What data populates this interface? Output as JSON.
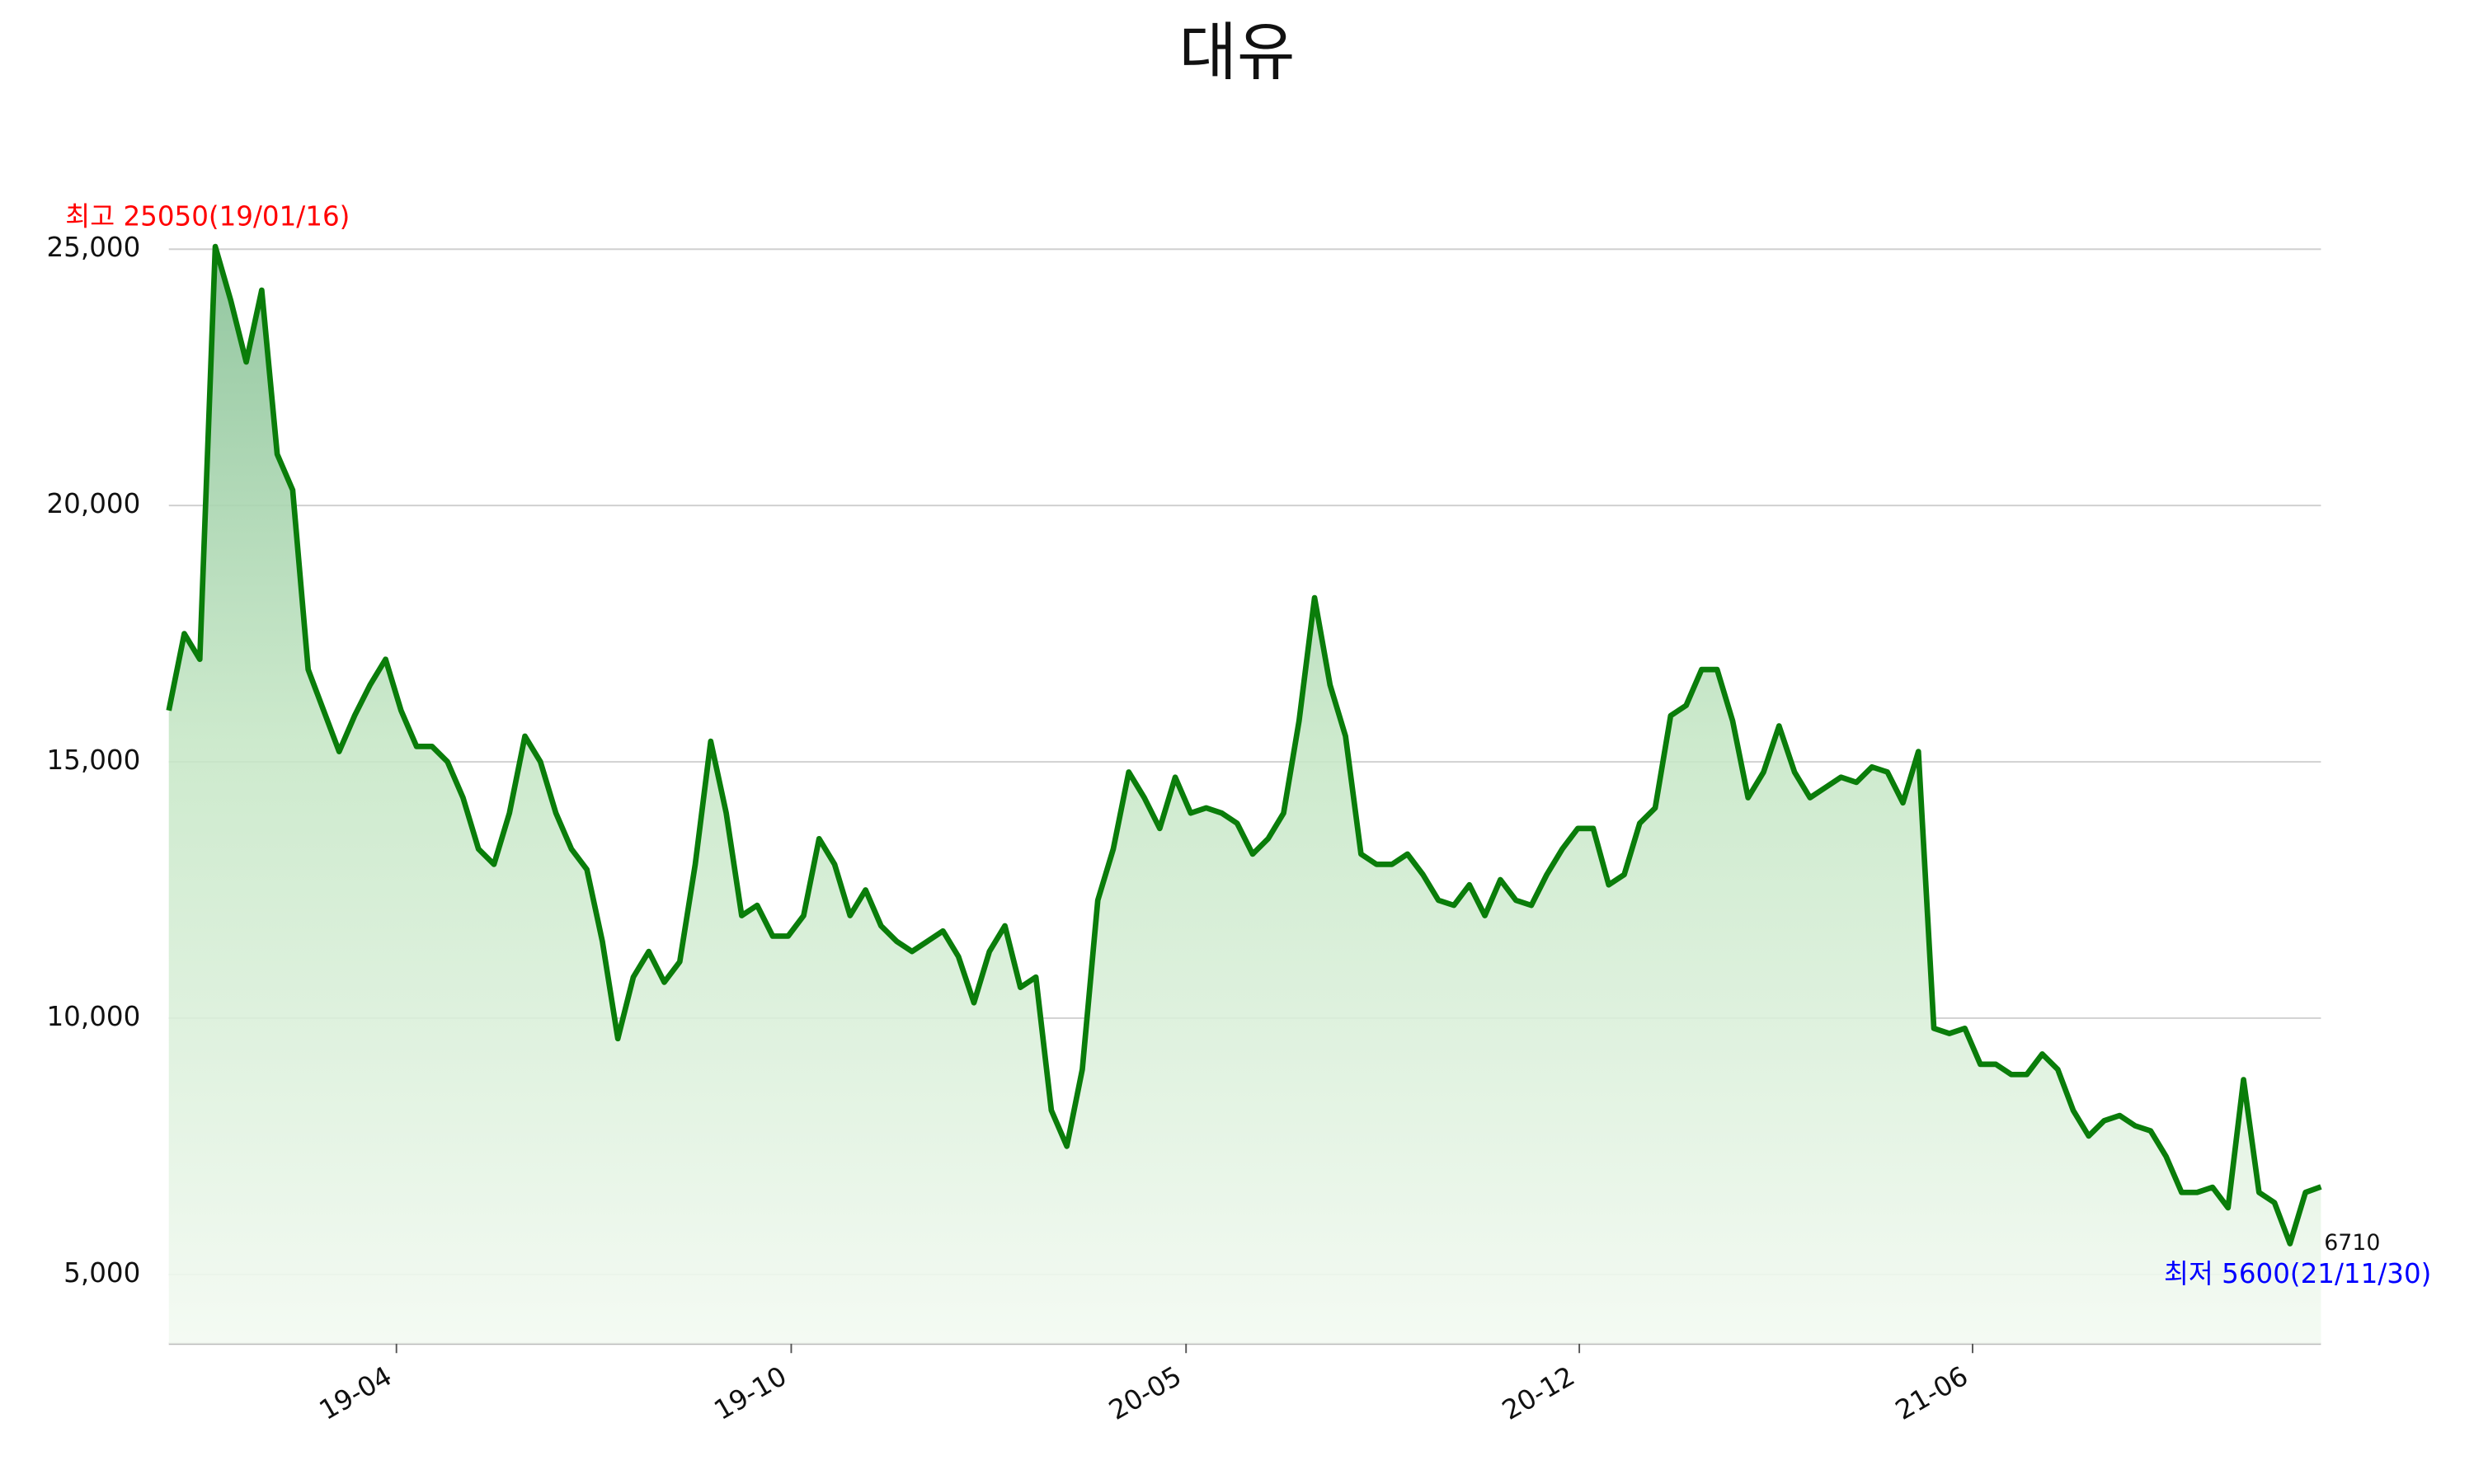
{
  "chart_data": {
    "type": "line",
    "title": "대유",
    "values": [
      16000,
      17500,
      17000,
      25050,
      24000,
      22800,
      24200,
      21000,
      20300,
      16800,
      16000,
      15200,
      15900,
      16500,
      17000,
      16000,
      15300,
      15300,
      15000,
      14300,
      13300,
      13000,
      14000,
      15500,
      15000,
      14000,
      13300,
      12900,
      11500,
      9600,
      10800,
      11300,
      10700,
      11100,
      13000,
      15400,
      14000,
      12000,
      12200,
      11600,
      11600,
      12000,
      13500,
      13000,
      12000,
      12500,
      11800,
      11500,
      11300,
      11500,
      11700,
      11200,
      10300,
      11300,
      11800,
      10600,
      10800,
      8200,
      7500,
      9000,
      12300,
      13300,
      14800,
      14300,
      13700,
      14700,
      14000,
      14100,
      14000,
      13800,
      13200,
      13500,
      14000,
      15800,
      18200,
      16500,
      15500,
      13200,
      13000,
      13000,
      13200,
      12800,
      12300,
      12200,
      12600,
      12000,
      12700,
      12300,
      12200,
      12800,
      13300,
      13700,
      13700,
      12600,
      12800,
      13800,
      14100,
      15900,
      16100,
      16800,
      16800,
      15800,
      14300,
      14800,
      15700,
      14800,
      14300,
      14500,
      14700,
      14600,
      14900,
      14800,
      14200,
      15200,
      9800,
      9700,
      9800,
      9100,
      9100,
      8900,
      8900,
      9300,
      9000,
      8200,
      7700,
      8000,
      8100,
      7900,
      7800,
      7300,
      6600,
      6600,
      6700,
      6300,
      8800,
      6600,
      6400,
      5600,
      6600,
      6710
    ],
    "color": "#0a7d0a",
    "xlim": [
      0,
      139
    ],
    "xticks": [
      {
        "value": 14.7,
        "label": "19-04"
      },
      {
        "value": 40.2,
        "label": "19-10"
      },
      {
        "value": 65.7,
        "label": "20-05"
      },
      {
        "value": 91.1,
        "label": "20-12"
      },
      {
        "value": 116.5,
        "label": "21-06"
      }
    ],
    "ylim": [
      3650,
      25400
    ],
    "yticks": [
      {
        "value": 5000,
        "label": "5,000"
      },
      {
        "value": 10000,
        "label": "10,000"
      },
      {
        "value": 15000,
        "label": "15,000"
      },
      {
        "value": 20000,
        "label": "20,000"
      },
      {
        "value": 25000,
        "label": "25,000"
      }
    ],
    "grid": true,
    "annotations": [
      {
        "text": "최고 25050(19/01/16)",
        "color": "#ff0000",
        "at": "max"
      },
      {
        "text": "최저 5600(21/11/30)",
        "color": "#0000ff",
        "at": "min"
      },
      {
        "text": "6710",
        "color": "#111111",
        "at": "last"
      }
    ]
  }
}
